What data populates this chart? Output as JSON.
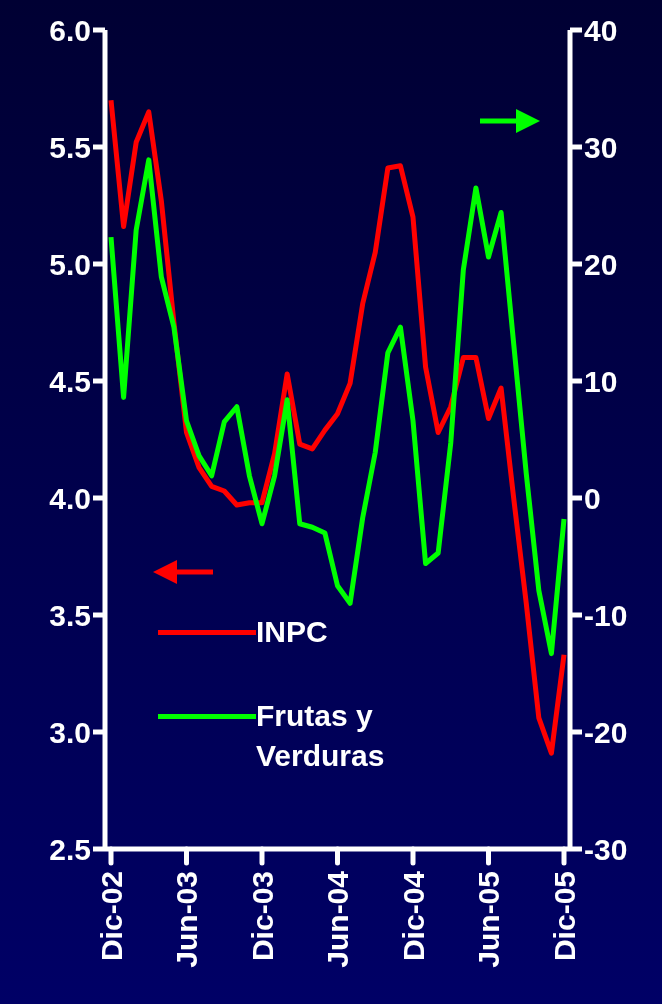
{
  "chart_data": {
    "type": "line",
    "categories": [
      "Dic-02",
      null,
      null,
      null,
      null,
      null,
      "Jun-03",
      null,
      null,
      null,
      null,
      null,
      "Dic-03",
      null,
      null,
      null,
      null,
      null,
      "Jun-04",
      null,
      null,
      null,
      null,
      null,
      "Dic-04",
      null,
      null,
      null,
      null,
      null,
      "Jun-05",
      null,
      null,
      null,
      null,
      null,
      "Dic-05"
    ],
    "series": [
      {
        "name": "INPC",
        "color": "#ff0000",
        "values": [
          5.7,
          5.16,
          5.52,
          5.65,
          5.27,
          4.75,
          4.28,
          4.13,
          4.05,
          4.03,
          3.97,
          3.98,
          3.98,
          4.19,
          4.53,
          4.23,
          4.21,
          4.29,
          4.36,
          4.49,
          4.83,
          5.05,
          5.41,
          5.42,
          5.2,
          4.56,
          4.28,
          4.39,
          4.6,
          4.6,
          4.34,
          4.47,
          4.0,
          3.55,
          3.06,
          2.91,
          3.33
        ]
      },
      {
        "name": "Frutas y Verduras",
        "color": "#00ff00",
        "axis": "y2",
        "values": [
          22.3,
          8.6,
          22.9,
          28.9,
          18.9,
          14.6,
          6.6,
          3.6,
          1.9,
          6.5,
          7.8,
          1.9,
          -2.2,
          1.9,
          8.4,
          -2.2,
          -2.5,
          -3.0,
          -7.5,
          -9.0,
          -1.7,
          3.9,
          12.4,
          14.6,
          6.6,
          -5.6,
          -4.7,
          4.7,
          19.5,
          26.5,
          20.6,
          24.4,
          13.2,
          2.1,
          -7.9,
          -13.3,
          -1.8
        ]
      }
    ],
    "ylim": [
      2.5,
      6.0
    ],
    "yticks": [
      {
        "value": 2.5,
        "label": "2.5"
      },
      {
        "value": 3,
        "label": "3.0"
      },
      {
        "value": 3.5,
        "label": "3.5"
      },
      {
        "value": 4,
        "label": "4.0"
      },
      {
        "value": 4.5,
        "label": "4.5"
      },
      {
        "value": 5,
        "label": "5.0"
      },
      {
        "value": 5.5,
        "label": "5.5"
      },
      {
        "value": 6,
        "label": "6.0"
      }
    ],
    "y2lim": [
      -30,
      40
    ],
    "y2ticks": [
      -30,
      -20,
      -10,
      0,
      10,
      20,
      30,
      40
    ],
    "legend": "bottom left",
    "line_style": "solid"
  }
}
